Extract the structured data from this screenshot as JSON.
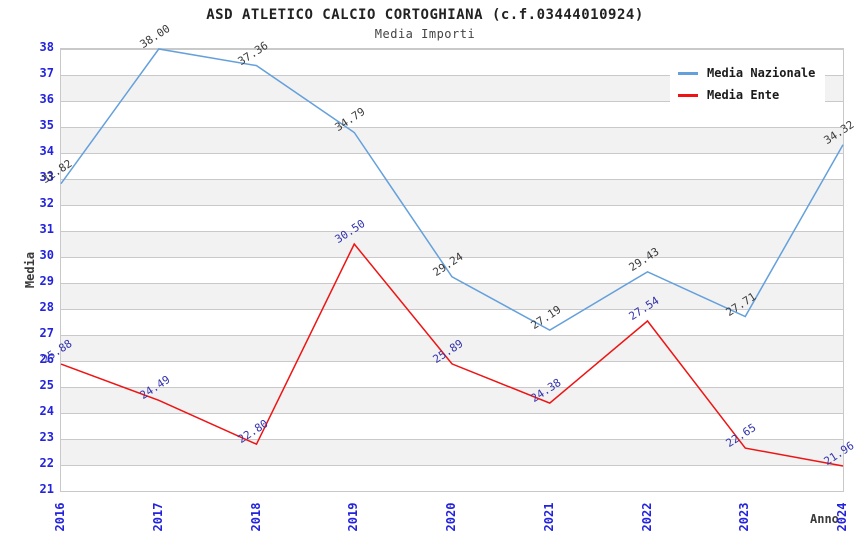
{
  "page": {
    "title": "ASD ATLETICO CALCIO CORTOGHIANA (c.f.03444010924)",
    "subtitle": "Media Importi"
  },
  "chart_data": {
    "type": "line",
    "title": "ASD ATLETICO CALCIO CORTOGHIANA (c.f.03444010924)",
    "subtitle": "Media Importi",
    "xlabel": "Anno",
    "ylabel": "Media",
    "categories": [
      "2016",
      "2017",
      "2018",
      "2019",
      "2020",
      "2021",
      "2022",
      "2023",
      "2024"
    ],
    "series": [
      {
        "name": "Media Nazionale",
        "color": "#64a0dc",
        "label_color": "#3a3a3a",
        "values": [
          32.82,
          38.0,
          37.36,
          34.79,
          29.24,
          27.19,
          29.43,
          27.71,
          34.32
        ]
      },
      {
        "name": "Media Ente",
        "color": "#ee1414",
        "label_color": "#3232ad",
        "values": [
          25.88,
          24.49,
          22.8,
          30.5,
          25.89,
          24.38,
          27.54,
          22.65,
          21.96
        ]
      }
    ],
    "ylim": [
      21,
      38
    ],
    "yticks": [
      21,
      22,
      23,
      24,
      25,
      26,
      27,
      28,
      29,
      30,
      31,
      32,
      33,
      34,
      35,
      36,
      37,
      38
    ],
    "ytick_step": 1,
    "legend_position": "top-right",
    "grid": "horizontal gridlines with alternating gray bands",
    "colors": {
      "tick_label": "#2323dd",
      "gridline": "#c9c9c9",
      "band": "#f2f2f2",
      "plot_border": "#c9c9c9",
      "title": "#222222",
      "subtitle": "#444444",
      "axis_label": "#3a3a3a"
    }
  }
}
